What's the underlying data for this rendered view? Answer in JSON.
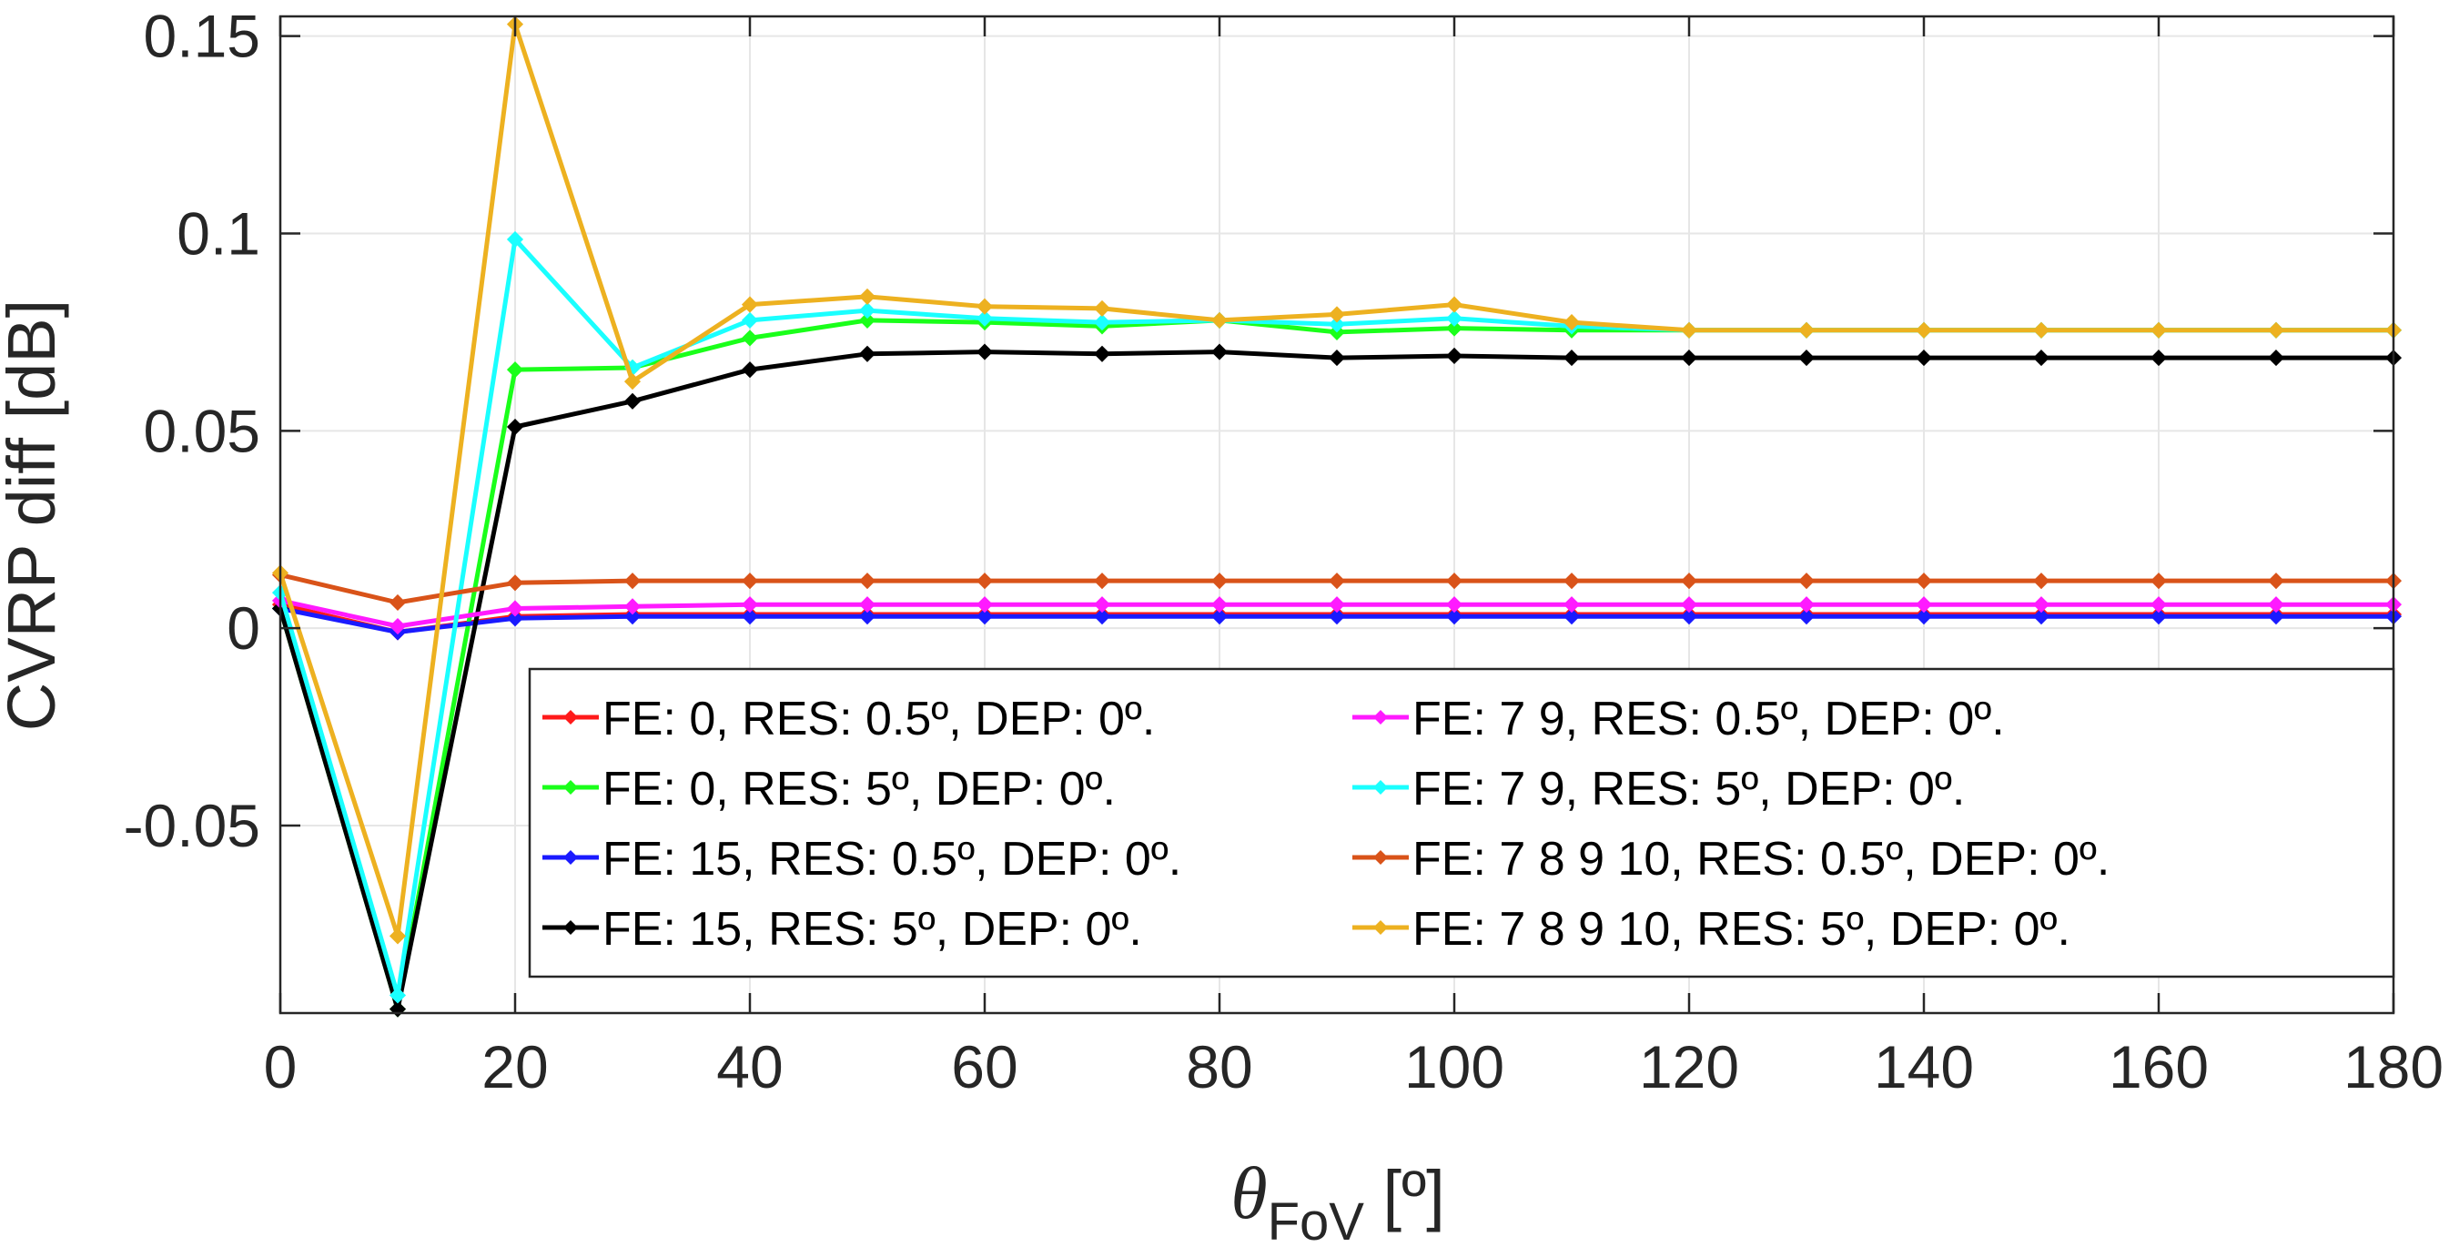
{
  "chart_data": {
    "type": "line",
    "title": "",
    "xlabel": "θ",
    "xlabel_subscript": "FoV",
    "xlabel_unit": " [º]",
    "ylabel": "CVRP diff [dB]",
    "xlim": [
      0,
      180
    ],
    "ylim": [
      -0.0975,
      0.155
    ],
    "xticks": [
      0,
      20,
      40,
      60,
      80,
      100,
      120,
      140,
      160,
      180
    ],
    "xtick_labels": [
      "0",
      "20",
      "40",
      "60",
      "80",
      "100",
      "120",
      "140",
      "160",
      "180"
    ],
    "yticks": [
      -0.05,
      0,
      0.05,
      0.1,
      0.15
    ],
    "ytick_labels": [
      "-0.05",
      "0",
      "0.05",
      "0.1",
      "0.15"
    ],
    "grid": true,
    "legend_position": "bottom-right",
    "legend_columns": 2,
    "x": [
      0,
      10,
      20,
      30,
      40,
      50,
      60,
      70,
      80,
      90,
      100,
      110,
      120,
      130,
      140,
      150,
      160,
      170,
      180
    ],
    "series": [
      {
        "name": "FE: 0, RES: 0.5º, DEP: 0º.",
        "color": "#ff1a1a",
        "values": [
          0.006,
          -0.001,
          0.003,
          0.0035,
          0.0035,
          0.0035,
          0.0035,
          0.0035,
          0.0035,
          0.0035,
          0.0035,
          0.0035,
          0.0035,
          0.0035,
          0.0035,
          0.0035,
          0.0035,
          0.0035,
          0.0035
        ]
      },
      {
        "name": "FE: 0, RES: 5º, DEP: 0º.",
        "color": "#1aff1a",
        "values": [
          0.005,
          -0.0965,
          0.0655,
          0.066,
          0.0735,
          0.078,
          0.0775,
          0.0765,
          0.078,
          0.075,
          0.076,
          0.0755,
          0.0755,
          0.0755,
          0.0755,
          0.0755,
          0.0755,
          0.0755,
          0.0755
        ]
      },
      {
        "name": "FE: 15, RES: 0.5º, DEP: 0º.",
        "color": "#1a1aff",
        "values": [
          0.005,
          -0.001,
          0.0025,
          0.003,
          0.003,
          0.003,
          0.003,
          0.003,
          0.003,
          0.003,
          0.003,
          0.003,
          0.003,
          0.003,
          0.003,
          0.003,
          0.003,
          0.003,
          0.003
        ]
      },
      {
        "name": "FE: 15, RES: 5º, DEP: 0º.",
        "color": "#000000",
        "values": [
          0.005,
          -0.0965,
          0.051,
          0.0575,
          0.0655,
          0.0695,
          0.07,
          0.0695,
          0.07,
          0.0685,
          0.069,
          0.0685,
          0.0685,
          0.0685,
          0.0685,
          0.0685,
          0.0685,
          0.0685,
          0.0685
        ]
      },
      {
        "name": "FE: 7   9, RES: 0.5º, DEP: 0º.",
        "color": "#ff1aff",
        "values": [
          0.007,
          0.0005,
          0.005,
          0.0055,
          0.006,
          0.006,
          0.006,
          0.006,
          0.006,
          0.006,
          0.006,
          0.006,
          0.006,
          0.006,
          0.006,
          0.006,
          0.006,
          0.006,
          0.006
        ]
      },
      {
        "name": "FE: 7   9, RES: 5º, DEP: 0º.",
        "color": "#1affff",
        "values": [
          0.009,
          -0.093,
          0.0985,
          0.066,
          0.078,
          0.0805,
          0.0785,
          0.0775,
          0.078,
          0.077,
          0.0785,
          0.0765,
          0.0755,
          0.0755,
          0.0755,
          0.0755,
          0.0755,
          0.0755,
          0.0755
        ]
      },
      {
        "name": "FE: 7    8    9    10, RES: 0.5º, DEP: 0º.",
        "color": "#d95319",
        "values": [
          0.0135,
          0.0065,
          0.0115,
          0.012,
          0.012,
          0.012,
          0.012,
          0.012,
          0.012,
          0.012,
          0.012,
          0.012,
          0.012,
          0.012,
          0.012,
          0.012,
          0.012,
          0.012,
          0.012
        ]
      },
      {
        "name": "FE: 7    8    9    10, RES: 5º, DEP: 0º.",
        "color": "#edb120",
        "values": [
          0.014,
          -0.078,
          0.153,
          0.0625,
          0.082,
          0.084,
          0.0815,
          0.081,
          0.078,
          0.0795,
          0.082,
          0.0775,
          0.0755,
          0.0755,
          0.0755,
          0.0755,
          0.0755,
          0.0755,
          0.0755
        ]
      }
    ]
  }
}
